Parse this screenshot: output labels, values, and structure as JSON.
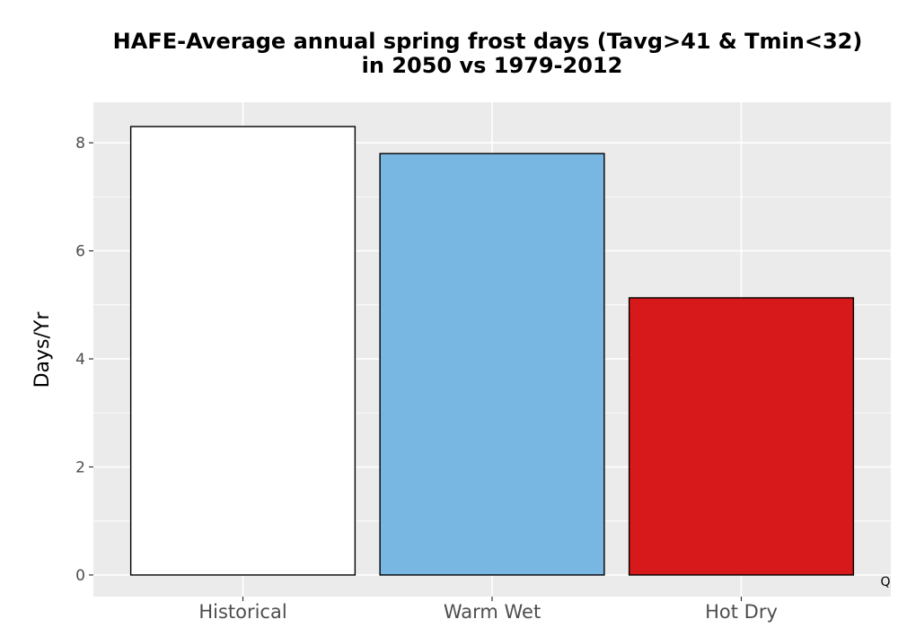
{
  "chart_data": {
    "type": "bar",
    "title": [
      "HAFE-Average annual spring frost days (Tavg>41 & Tmin<32)",
      "in 2050 vs 1979-2012"
    ],
    "xlabel": "",
    "ylabel": "Days/Yr",
    "categories": [
      "Historical",
      "Warm Wet",
      "Hot Dry"
    ],
    "values": [
      8.3,
      7.8,
      5.13
    ],
    "colors": [
      "#ffffff",
      "#78b7e1",
      "#d7191c"
    ],
    "bar_outline": "#000000",
    "panel_background": "#ebebeb",
    "gridline_color": "#ffffff",
    "ylim": [
      -0.4,
      8.75
    ],
    "yticks": [
      0,
      2,
      4,
      6,
      8
    ],
    "grid": true,
    "annotation": "Q"
  }
}
